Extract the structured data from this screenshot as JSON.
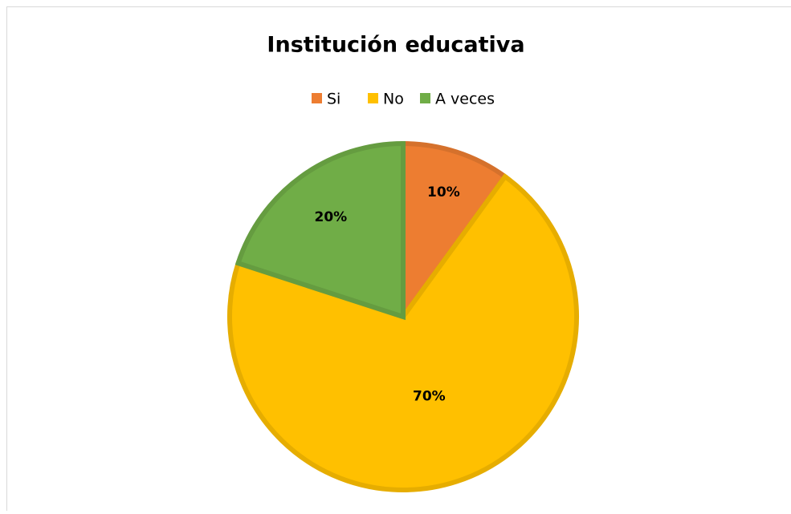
{
  "chart_data": {
    "type": "pie",
    "title": "Institución educativa",
    "categories": [
      "Si",
      "No",
      "A veces"
    ],
    "values": [
      10,
      70,
      20
    ],
    "value_labels": [
      "10%",
      "70%",
      "20%"
    ],
    "colors": [
      "#ED7D31",
      "#FFC000",
      "#70AD47"
    ],
    "legend": "top"
  }
}
